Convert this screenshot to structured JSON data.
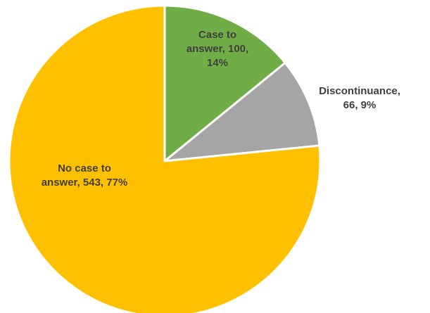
{
  "chart_data": {
    "type": "pie",
    "slices": [
      {
        "name": "Case to answer",
        "value": 100,
        "percent": "14%",
        "color": "#70ad47",
        "label_lines": [
          "Case to",
          "answer, 100,",
          "14%"
        ]
      },
      {
        "name": "Discontinuance",
        "value": 66,
        "percent": "9%",
        "color": "#a5a5a5",
        "label_lines": [
          "Discontinuance,",
          "66, 9%"
        ]
      },
      {
        "name": "No case to answer",
        "value": 543,
        "percent": "77%",
        "color": "#ffc000",
        "label_lines": [
          "No case to",
          "answer, 543, 77%"
        ]
      }
    ],
    "start_angle_deg": 0,
    "direction": "clockwise",
    "legend": "none"
  }
}
